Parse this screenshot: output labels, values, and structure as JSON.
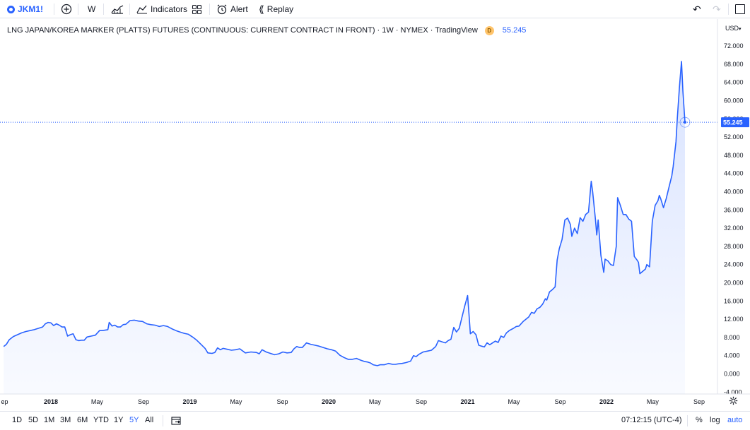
{
  "toolbar": {
    "symbol": "JKM1!",
    "interval": "W",
    "indicators_label": "Indicators",
    "alert_label": "Alert",
    "replay_label": "Replay"
  },
  "legend": {
    "title": "LNG JAPAN/KOREA MARKER (PLATTS) FUTURES (CONTINUOUS: CURRENT CONTRACT IN FRONT) · 1W · NYMEX · TradingView",
    "badge": "D",
    "price": "55.245"
  },
  "price_axis": {
    "currency": "USD"
  },
  "last_price_tag": "55.245",
  "bottom": {
    "ranges": [
      "1D",
      "5D",
      "1M",
      "3M",
      "6M",
      "YTD",
      "1Y",
      "5Y",
      "All"
    ],
    "active_range": "5Y",
    "clock": "07:12:15 (UTC-4)",
    "percent": "%",
    "log": "log",
    "auto": "auto"
  },
  "colors": {
    "line": "#2962ff",
    "fill": "#dbe4fb",
    "last_price_bg": "#2962ff"
  },
  "chart_data": {
    "type": "area",
    "title": "LNG JAPAN/KOREA MARKER (PLATTS) FUTURES (CONTINUOUS: CURRENT CONTRACT IN FRONT)",
    "ylabel": "USD",
    "ylim": [
      -6,
      74
    ],
    "xlim": [
      2017.66,
      2022.78
    ],
    "yticks": [
      -4,
      0,
      4,
      8,
      12,
      16,
      20,
      24,
      28,
      32,
      36,
      40,
      44,
      48,
      52,
      56,
      60,
      64,
      68,
      72
    ],
    "ytick_labels": [
      "-4.000",
      "0.000",
      "4.000",
      "8.000",
      "12.000",
      "16.000",
      "20.000",
      "24.000",
      "28.000",
      "32.000",
      "36.000",
      "40.000",
      "44.000",
      "48.000",
      "52.000",
      "56.000",
      "60.000",
      "64.000",
      "68.000",
      "72.000"
    ],
    "xticks": [
      {
        "label": "ep",
        "t": 2017.667,
        "year": false
      },
      {
        "label": "2018",
        "t": 2018.0,
        "year": true
      },
      {
        "label": "May",
        "t": 2018.333,
        "year": false
      },
      {
        "label": "Sep",
        "t": 2018.667,
        "year": false
      },
      {
        "label": "2019",
        "t": 2019.0,
        "year": true
      },
      {
        "label": "May",
        "t": 2019.333,
        "year": false
      },
      {
        "label": "Sep",
        "t": 2019.667,
        "year": false
      },
      {
        "label": "2020",
        "t": 2020.0,
        "year": true
      },
      {
        "label": "May",
        "t": 2020.333,
        "year": false
      },
      {
        "label": "Sep",
        "t": 2020.667,
        "year": false
      },
      {
        "label": "2021",
        "t": 2021.0,
        "year": true
      },
      {
        "label": "May",
        "t": 2021.333,
        "year": false
      },
      {
        "label": "Sep",
        "t": 2021.667,
        "year": false
      },
      {
        "label": "2022",
        "t": 2022.0,
        "year": true
      },
      {
        "label": "May",
        "t": 2022.333,
        "year": false
      },
      {
        "label": "Sep",
        "t": 2022.667,
        "year": false
      }
    ],
    "series": [
      {
        "name": "JKM1!",
        "points": [
          [
            2017.66,
            6.0
          ],
          [
            2017.68,
            6.5
          ],
          [
            2017.7,
            7.5
          ],
          [
            2017.73,
            8.2
          ],
          [
            2017.76,
            8.6
          ],
          [
            2017.79,
            9.0
          ],
          [
            2017.82,
            9.3
          ],
          [
            2017.85,
            9.5
          ],
          [
            2017.88,
            9.7
          ],
          [
            2017.91,
            10.0
          ],
          [
            2017.94,
            10.3
          ],
          [
            2017.96,
            11.0
          ],
          [
            2017.98,
            11.3
          ],
          [
            2018.0,
            11.2
          ],
          [
            2018.02,
            10.6
          ],
          [
            2018.04,
            11.0
          ],
          [
            2018.06,
            10.7
          ],
          [
            2018.08,
            10.3
          ],
          [
            2018.1,
            10.3
          ],
          [
            2018.12,
            8.3
          ],
          [
            2018.14,
            8.6
          ],
          [
            2018.16,
            8.8
          ],
          [
            2018.18,
            7.5
          ],
          [
            2018.2,
            7.3
          ],
          [
            2018.22,
            7.4
          ],
          [
            2018.24,
            7.4
          ],
          [
            2018.26,
            8.1
          ],
          [
            2018.29,
            8.3
          ],
          [
            2018.32,
            8.5
          ],
          [
            2018.35,
            9.5
          ],
          [
            2018.37,
            9.5
          ],
          [
            2018.39,
            9.6
          ],
          [
            2018.41,
            9.7
          ],
          [
            2018.42,
            11.3
          ],
          [
            2018.44,
            10.5
          ],
          [
            2018.46,
            10.7
          ],
          [
            2018.48,
            10.3
          ],
          [
            2018.5,
            10.3
          ],
          [
            2018.52,
            10.8
          ],
          [
            2018.54,
            10.9
          ],
          [
            2018.57,
            11.7
          ],
          [
            2018.6,
            11.8
          ],
          [
            2018.63,
            11.6
          ],
          [
            2018.66,
            11.5
          ],
          [
            2018.69,
            11.0
          ],
          [
            2018.72,
            10.8
          ],
          [
            2018.75,
            10.7
          ],
          [
            2018.78,
            10.4
          ],
          [
            2018.81,
            10.6
          ],
          [
            2018.84,
            10.4
          ],
          [
            2018.87,
            9.9
          ],
          [
            2018.9,
            9.5
          ],
          [
            2018.93,
            9.2
          ],
          [
            2018.96,
            8.9
          ],
          [
            2018.99,
            8.7
          ],
          [
            2019.02,
            8.1
          ],
          [
            2019.05,
            7.4
          ],
          [
            2019.08,
            6.5
          ],
          [
            2019.11,
            5.6
          ],
          [
            2019.13,
            4.6
          ],
          [
            2019.16,
            4.5
          ],
          [
            2019.18,
            4.7
          ],
          [
            2019.2,
            5.7
          ],
          [
            2019.22,
            5.3
          ],
          [
            2019.24,
            5.6
          ],
          [
            2019.27,
            5.4
          ],
          [
            2019.3,
            5.2
          ],
          [
            2019.33,
            5.3
          ],
          [
            2019.36,
            5.5
          ],
          [
            2019.4,
            4.6
          ],
          [
            2019.44,
            4.8
          ],
          [
            2019.48,
            4.7
          ],
          [
            2019.5,
            4.4
          ],
          [
            2019.52,
            5.3
          ],
          [
            2019.55,
            4.8
          ],
          [
            2019.58,
            4.5
          ],
          [
            2019.61,
            4.2
          ],
          [
            2019.64,
            4.4
          ],
          [
            2019.67,
            4.8
          ],
          [
            2019.7,
            4.6
          ],
          [
            2019.73,
            4.7
          ],
          [
            2019.75,
            5.5
          ],
          [
            2019.77,
            6.0
          ],
          [
            2019.79,
            5.8
          ],
          [
            2019.81,
            5.8
          ],
          [
            2019.84,
            6.8
          ],
          [
            2019.87,
            6.5
          ],
          [
            2019.9,
            6.3
          ],
          [
            2019.93,
            6.1
          ],
          [
            2019.96,
            5.8
          ],
          [
            2019.99,
            5.5
          ],
          [
            2020.02,
            5.3
          ],
          [
            2020.05,
            5.0
          ],
          [
            2020.08,
            4.1
          ],
          [
            2020.11,
            3.6
          ],
          [
            2020.14,
            3.2
          ],
          [
            2020.17,
            3.2
          ],
          [
            2020.2,
            3.4
          ],
          [
            2020.23,
            3.0
          ],
          [
            2020.26,
            2.7
          ],
          [
            2020.28,
            2.6
          ],
          [
            2020.3,
            2.4
          ],
          [
            2020.32,
            2.0
          ],
          [
            2020.35,
            1.8
          ],
          [
            2020.37,
            2.0
          ],
          [
            2020.4,
            2.0
          ],
          [
            2020.43,
            2.3
          ],
          [
            2020.46,
            2.1
          ],
          [
            2020.48,
            2.1
          ],
          [
            2020.5,
            2.2
          ],
          [
            2020.53,
            2.3
          ],
          [
            2020.56,
            2.5
          ],
          [
            2020.59,
            2.8
          ],
          [
            2020.61,
            4.0
          ],
          [
            2020.63,
            3.8
          ],
          [
            2020.65,
            4.3
          ],
          [
            2020.68,
            4.8
          ],
          [
            2020.71,
            5.0
          ],
          [
            2020.74,
            5.2
          ],
          [
            2020.77,
            6.0
          ],
          [
            2020.79,
            7.3
          ],
          [
            2020.82,
            7.0
          ],
          [
            2020.84,
            6.8
          ],
          [
            2020.86,
            7.3
          ],
          [
            2020.88,
            7.6
          ],
          [
            2020.9,
            10.2
          ],
          [
            2020.92,
            9.2
          ],
          [
            2020.94,
            10.0
          ],
          [
            2020.96,
            12.5
          ],
          [
            2020.98,
            15.0
          ],
          [
            2021.0,
            17.2
          ],
          [
            2021.01,
            13.0
          ],
          [
            2021.02,
            8.8
          ],
          [
            2021.04,
            9.3
          ],
          [
            2021.06,
            8.6
          ],
          [
            2021.08,
            6.3
          ],
          [
            2021.1,
            6.1
          ],
          [
            2021.12,
            5.9
          ],
          [
            2021.14,
            6.8
          ],
          [
            2021.16,
            6.4
          ],
          [
            2021.18,
            6.8
          ],
          [
            2021.2,
            7.2
          ],
          [
            2021.22,
            6.9
          ],
          [
            2021.24,
            8.3
          ],
          [
            2021.26,
            8.0
          ],
          [
            2021.28,
            9.0
          ],
          [
            2021.3,
            9.5
          ],
          [
            2021.33,
            10.0
          ],
          [
            2021.35,
            10.4
          ],
          [
            2021.37,
            10.5
          ],
          [
            2021.4,
            11.5
          ],
          [
            2021.42,
            12.0
          ],
          [
            2021.44,
            12.5
          ],
          [
            2021.46,
            13.5
          ],
          [
            2021.48,
            13.3
          ],
          [
            2021.5,
            14.3
          ],
          [
            2021.52,
            14.6
          ],
          [
            2021.54,
            15.3
          ],
          [
            2021.56,
            16.5
          ],
          [
            2021.57,
            16.2
          ],
          [
            2021.59,
            18.0
          ],
          [
            2021.61,
            18.5
          ],
          [
            2021.63,
            19.1
          ],
          [
            2021.645,
            25.0
          ],
          [
            2021.66,
            27.5
          ],
          [
            2021.68,
            29.5
          ],
          [
            2021.7,
            33.8
          ],
          [
            2021.72,
            34.2
          ],
          [
            2021.74,
            32.8
          ],
          [
            2021.75,
            30.2
          ],
          [
            2021.77,
            32.0
          ],
          [
            2021.79,
            30.8
          ],
          [
            2021.81,
            34.3
          ],
          [
            2021.83,
            33.5
          ],
          [
            2021.85,
            35.0
          ],
          [
            2021.87,
            35.5
          ],
          [
            2021.89,
            42.3
          ],
          [
            2021.9,
            40.0
          ],
          [
            2021.92,
            34.0
          ],
          [
            2021.93,
            30.5
          ],
          [
            2021.94,
            33.8
          ],
          [
            2021.96,
            26.0
          ],
          [
            2021.98,
            22.3
          ],
          [
            2021.99,
            25.2
          ],
          [
            2022.01,
            24.8
          ],
          [
            2022.03,
            24.0
          ],
          [
            2022.05,
            23.8
          ],
          [
            2022.07,
            28.0
          ],
          [
            2022.08,
            38.7
          ],
          [
            2022.1,
            37.0
          ],
          [
            2022.12,
            35.0
          ],
          [
            2022.14,
            35.0
          ],
          [
            2022.16,
            34.0
          ],
          [
            2022.18,
            33.5
          ],
          [
            2022.2,
            25.8
          ],
          [
            2022.22,
            25.0
          ],
          [
            2022.23,
            24.5
          ],
          [
            2022.24,
            22.0
          ],
          [
            2022.26,
            22.5
          ],
          [
            2022.28,
            23.0
          ],
          [
            2022.29,
            24.0
          ],
          [
            2022.31,
            23.5
          ],
          [
            2022.33,
            33.5
          ],
          [
            2022.35,
            37.0
          ],
          [
            2022.37,
            38.0
          ],
          [
            2022.38,
            39.2
          ],
          [
            2022.39,
            38.5
          ],
          [
            2022.41,
            36.5
          ],
          [
            2022.43,
            38.5
          ],
          [
            2022.45,
            41.0
          ],
          [
            2022.47,
            43.5
          ],
          [
            2022.48,
            45.5
          ],
          [
            2022.5,
            51.0
          ],
          [
            2022.51,
            56.2
          ],
          [
            2022.525,
            63.0
          ],
          [
            2022.54,
            68.6
          ],
          [
            2022.55,
            62.0
          ],
          [
            2022.565,
            55.245
          ]
        ]
      }
    ],
    "last_value": 55.245
  }
}
